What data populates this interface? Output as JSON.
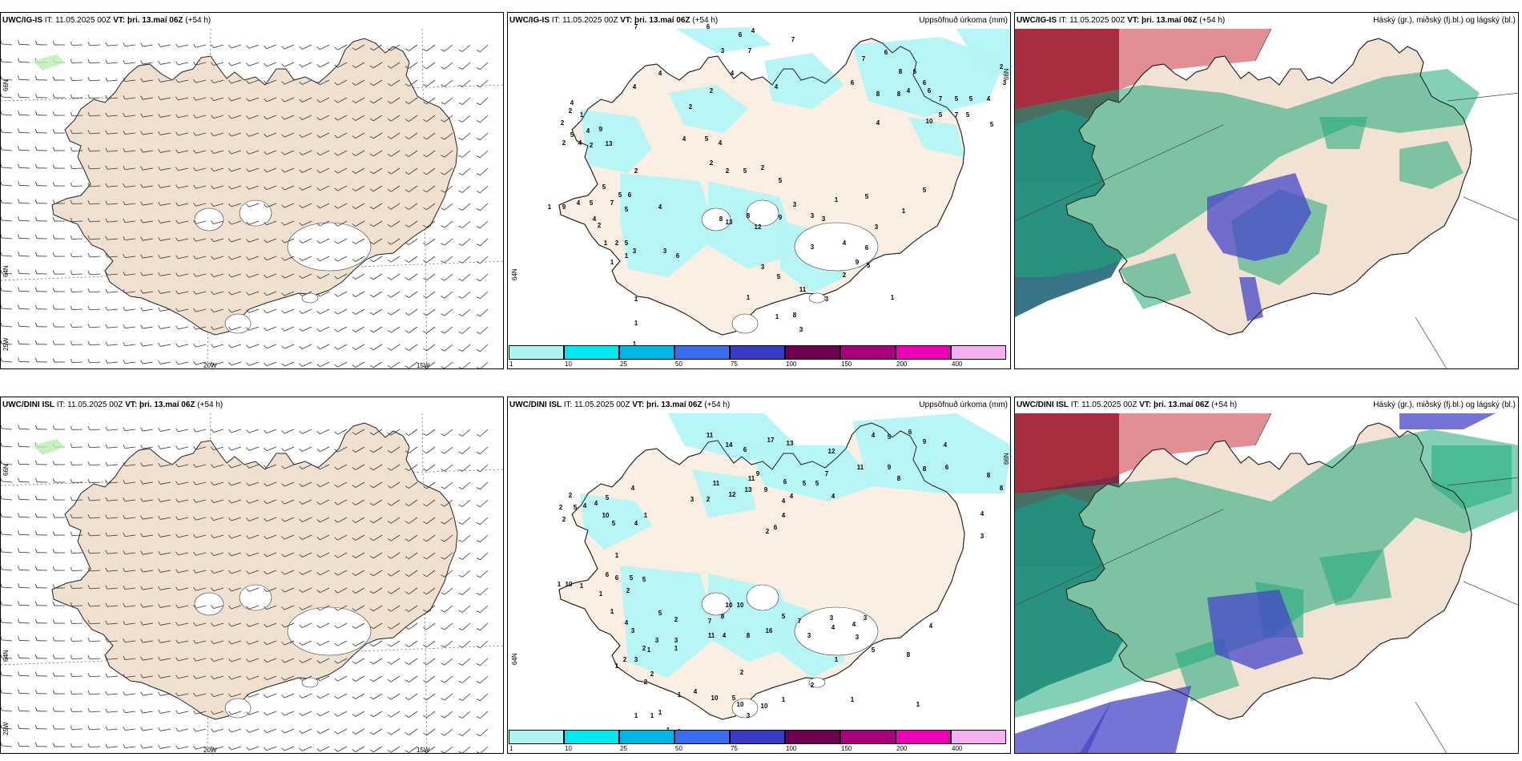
{
  "panels": {
    "ig_wind": {
      "model": "UWC/IG-IS",
      "it_label": "IT:",
      "it": "11.05.2025 00Z",
      "vt_label": "VT:",
      "vt": "þri. 13.maí 06Z",
      "lead": "(+54 h)"
    },
    "ig_precip": {
      "model": "UWC/IG-IS",
      "it_label": "IT:",
      "it": "11.05.2025 00Z",
      "vt_label": "VT:",
      "vt": "þri. 13.maí 06Z",
      "lead": "(+54 h)",
      "field": "Uppsöfnuð úrkoma (mm)"
    },
    "ig_cloud": {
      "model": "UWC/IG-IS",
      "it_label": "IT:",
      "it": "11.05.2025 00Z",
      "vt_label": "VT:",
      "vt": "þri. 13.maí 06Z",
      "lead": "(+54 h)",
      "field": "Háský (gr.), miðský (fj.bl.) og lágský (bl.)"
    },
    "dini_wind": {
      "model": "UWC/DINI ISL",
      "it_label": "IT:",
      "it": "11.05.2025 00Z",
      "vt_label": "VT:",
      "vt": "þri. 13.maí 06Z",
      "lead": "(+54 h)"
    },
    "dini_precip": {
      "model": "UWC/DINI ISL",
      "it_label": "IT:",
      "it": "11.05.2025 00Z",
      "vt_label": "VT:",
      "vt": "þri. 13.maí 06Z",
      "lead": "(+54 h)",
      "field": "Uppsöfnuð úrkoma (mm)"
    },
    "dini_cloud": {
      "model": "UWC/DINI ISL",
      "it_label": "IT:",
      "it": "11.05.2025 00Z",
      "vt_label": "VT:",
      "vt": "þri. 13.maí 06Z",
      "lead": "(+54 h)",
      "field": "Háský (gr.), miðský (fj.bl.) og lágský (bl.)"
    }
  },
  "grid_labels": {
    "lat_66": "66N",
    "lat_64": "64N",
    "lon_25": "25W",
    "lon_20": "20W",
    "lon_15": "15W"
  },
  "precip_legend": {
    "ticks": [
      "1",
      "10",
      "25",
      "50",
      "75",
      "100",
      "150",
      "200",
      "400"
    ],
    "colors": [
      "#b0f2f2",
      "#00e8ef",
      "#00b6e6",
      "#3a6ef0",
      "#3a3ac8",
      "#6e0050",
      "#a8007e",
      "#ee00b4",
      "#f3b2ef"
    ]
  },
  "colors": {
    "land": "#f0e0d0",
    "precip_land": "#fbeee3",
    "precip_light": "#b3f5f5",
    "high_cloud": "#c8323c",
    "mid_cloud": "#1eaa7a",
    "low_cloud": "#4646c8",
    "overlap": "#2c6e80"
  }
}
